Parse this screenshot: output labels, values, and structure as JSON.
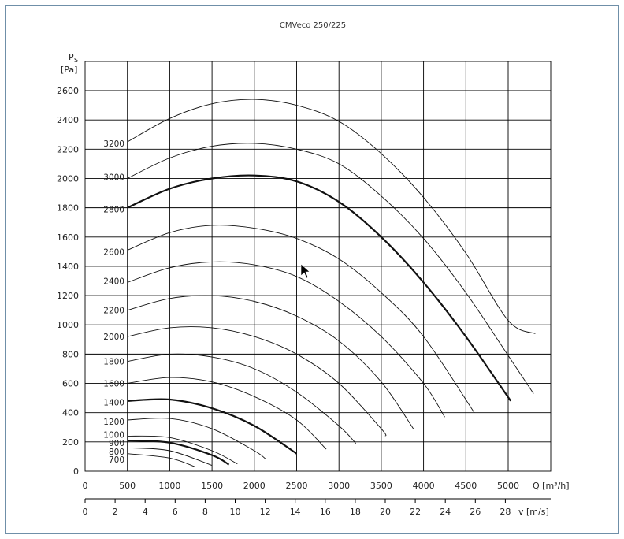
{
  "chart_data": {
    "type": "line",
    "title": "CMVeco 250/225",
    "ylabel_main": "P",
    "ylabel_sub": "S",
    "yunit": "[Pa]",
    "xlabel": "Q [m³/h]",
    "x2label": "v [m/s]",
    "xlim": [
      0,
      5500
    ],
    "ylim": [
      0,
      2600
    ],
    "xticks": [
      0,
      500,
      1000,
      1500,
      2000,
      2500,
      3000,
      3500,
      4000,
      4500,
      5000
    ],
    "yticks": [
      0,
      200,
      400,
      600,
      800,
      1000,
      1200,
      1400,
      1600,
      1800,
      2000,
      2200,
      2400,
      2600
    ],
    "x2ticks": [
      0,
      2,
      4,
      6,
      8,
      10,
      12,
      14,
      16,
      18,
      20,
      22,
      24,
      26,
      28
    ],
    "grid": true,
    "series": [
      {
        "name": "3200",
        "bold": false,
        "label_y": 2240,
        "x": [
          500,
          1000,
          1500,
          2000,
          2500,
          3000,
          3500,
          4000,
          4500,
          5000,
          5320
        ],
        "y": [
          2250,
          2410,
          2510,
          2540,
          2500,
          2390,
          2170,
          1870,
          1490,
          1030,
          940
        ]
      },
      {
        "name": "3000",
        "bold": false,
        "label_y": 2010,
        "x": [
          500,
          1000,
          1500,
          2000,
          2500,
          3000,
          3500,
          4000,
          4500,
          5000,
          5300
        ],
        "y": [
          2000,
          2140,
          2220,
          2240,
          2200,
          2100,
          1880,
          1590,
          1220,
          790,
          530
        ]
      },
      {
        "name": "2800",
        "bold": true,
        "label_y": 1790,
        "x": [
          500,
          1000,
          1500,
          2000,
          2500,
          3000,
          3500,
          4000,
          4500,
          5030
        ],
        "y": [
          1800,
          1930,
          2000,
          2020,
          1980,
          1840,
          1600,
          1290,
          920,
          480
        ]
      },
      {
        "name": "2600",
        "bold": false,
        "label_y": 1500,
        "x": [
          500,
          1000,
          1500,
          2000,
          2500,
          3000,
          3500,
          4000,
          4600
        ],
        "y": [
          1510,
          1630,
          1680,
          1660,
          1590,
          1450,
          1220,
          920,
          400
        ]
      },
      {
        "name": "2400",
        "bold": false,
        "label_y": 1300,
        "x": [
          500,
          1000,
          1500,
          2000,
          2500,
          3000,
          3500,
          4000,
          4250
        ],
        "y": [
          1290,
          1390,
          1430,
          1410,
          1330,
          1160,
          920,
          600,
          370
        ]
      },
      {
        "name": "2200",
        "bold": false,
        "label_y": 1100,
        "x": [
          500,
          1000,
          1500,
          2000,
          2500,
          3000,
          3500,
          3880
        ],
        "y": [
          1100,
          1180,
          1200,
          1160,
          1060,
          890,
          610,
          290
        ]
      },
      {
        "name": "2000",
        "bold": false,
        "label_y": 920,
        "x": [
          500,
          1000,
          1500,
          2000,
          2500,
          3000,
          3500,
          3550
        ],
        "y": [
          920,
          980,
          980,
          920,
          800,
          600,
          290,
          240
        ]
      },
      {
        "name": "1800",
        "bold": false,
        "label_y": 750,
        "x": [
          500,
          1000,
          1500,
          2000,
          2500,
          3000,
          3200
        ],
        "y": [
          750,
          800,
          780,
          700,
          540,
          310,
          190
        ]
      },
      {
        "name": "1600",
        "bold": false,
        "label_y": 600,
        "x": [
          500,
          1000,
          1500,
          2000,
          2500,
          2850
        ],
        "y": [
          600,
          640,
          610,
          510,
          350,
          150
        ]
      },
      {
        "name": "1400",
        "bold": true,
        "label_y": 470,
        "x": [
          500,
          1000,
          1500,
          2000,
          2500
        ],
        "y": [
          480,
          490,
          430,
          310,
          120
        ]
      },
      {
        "name": "1200",
        "bold": false,
        "label_y": 340,
        "x": [
          500,
          1000,
          1500,
          2000,
          2140
        ],
        "y": [
          350,
          360,
          290,
          140,
          80
        ]
      },
      {
        "name": "1000",
        "bold": false,
        "label_y": 250,
        "x": [
          500,
          1000,
          1500,
          1800
        ],
        "y": [
          240,
          230,
          140,
          50
        ]
      },
      {
        "name": "900",
        "bold": true,
        "label_y": 195,
        "x": [
          500,
          1000,
          1500,
          1700
        ],
        "y": [
          210,
          195,
          110,
          45
        ]
      },
      {
        "name": "800",
        "bold": false,
        "label_y": 135,
        "x": [
          500,
          1000,
          1500
        ],
        "y": [
          160,
          140,
          40
        ]
      },
      {
        "name": "700",
        "bold": false,
        "label_y": 80,
        "x": [
          500,
          1000,
          1300
        ],
        "y": [
          120,
          90,
          30
        ]
      }
    ]
  }
}
